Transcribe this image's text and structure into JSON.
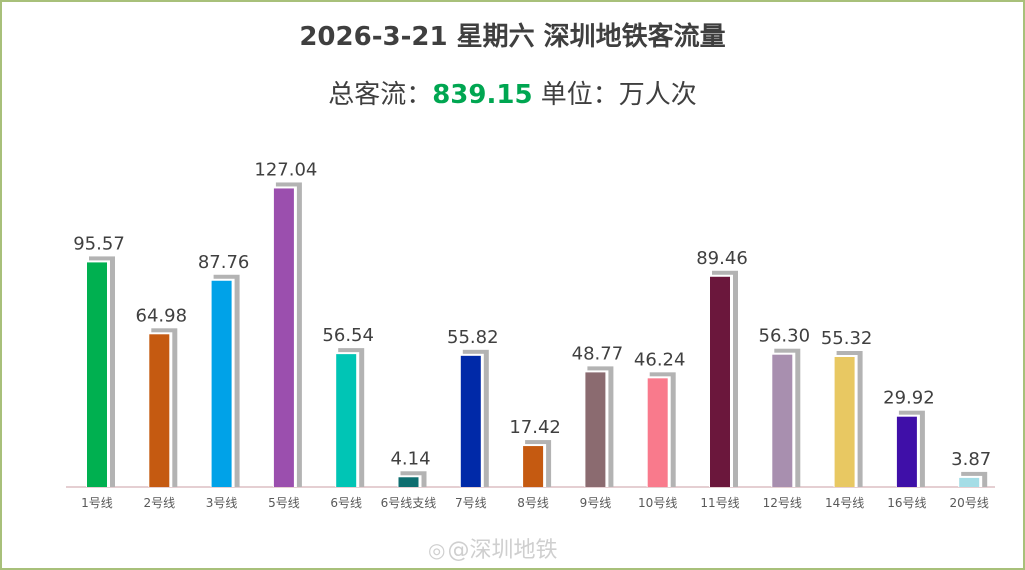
{
  "header": {
    "title": "2026-3-21 星期六  深圳地铁客流量",
    "total_label": "总客流：",
    "total_value": "839.15",
    "unit_text": "  单位：万人次"
  },
  "watermark": {
    "text": "@深圳地铁"
  },
  "chart_data": {
    "type": "bar",
    "title": "2026-3-21 星期六  深圳地铁客流量",
    "xlabel": "",
    "ylabel": "",
    "ylim": [
      0,
      140
    ],
    "grid": false,
    "categories": [
      "1号线",
      "2号线",
      "3号线",
      "5号线",
      "6号线",
      "6号线支线",
      "7号线",
      "8号线",
      "9号线",
      "10号线",
      "11号线",
      "12号线",
      "14号线",
      "16号线",
      "20号线"
    ],
    "values": [
      95.57,
      64.98,
      87.76,
      127.04,
      56.54,
      4.14,
      55.82,
      17.42,
      48.77,
      46.24,
      89.46,
      56.3,
      55.32,
      29.92,
      3.87
    ],
    "labels": [
      "95.57",
      "64.98",
      "87.76",
      "127.04",
      "56.54",
      "4.14",
      "55.82",
      "17.42",
      "48.77",
      "46.24",
      "89.46",
      "56.30",
      "55.32",
      "29.92",
      "3.87"
    ],
    "colors": [
      "#00b050",
      "#c55a11",
      "#00a2e8",
      "#9b4fae",
      "#00c5b5",
      "#0f6e70",
      "#0029a8",
      "#c55a11",
      "#8b6b70",
      "#f97a8c",
      "#6b173c",
      "#a88faf",
      "#e8c862",
      "#3f0fa8",
      "#a4dde6"
    ],
    "shadow_color": "#b3b3b3"
  }
}
